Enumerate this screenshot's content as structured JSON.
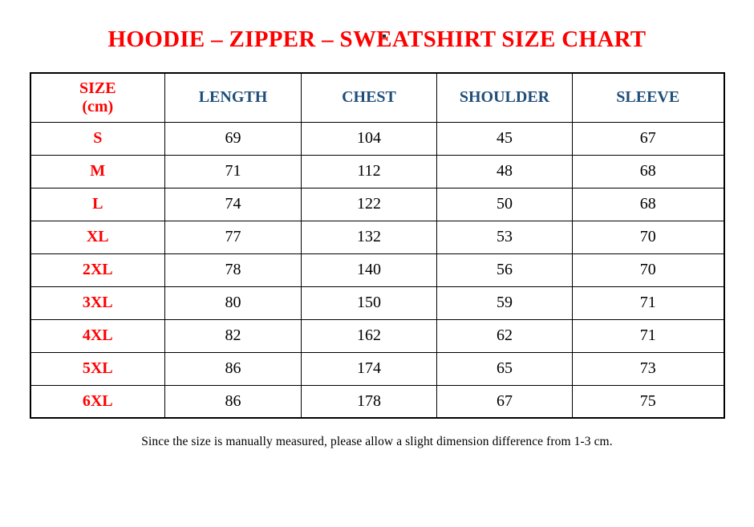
{
  "page": {
    "title": "HOODIE – ZIPPER – SWEATSHIRT SIZE CHART",
    "footnote": "Since the size is manually measured, please allow a slight dimension difference from 1-3 cm.",
    "stray_mark": "."
  },
  "colors": {
    "title_red": "#ff0000",
    "size_label_red": "#ff0000",
    "header_blue": "#1f4e79",
    "value_black": "#000000",
    "grid_border": "#000000",
    "background": "#ffffff"
  },
  "table": {
    "size_header_line1": "SIZE",
    "size_header_line2": "(cm)",
    "measure_headers": [
      "LENGTH",
      "CHEST",
      "SHOULDER",
      "SLEEVE"
    ]
  },
  "chart_data": {
    "type": "table",
    "title": "HOODIE – ZIPPER – SWEATSHIRT SIZE CHART",
    "unit": "cm",
    "columns": [
      "SIZE (cm)",
      "LENGTH",
      "CHEST",
      "SHOULDER",
      "SLEEVE"
    ],
    "rows": [
      [
        "S",
        69,
        104,
        45,
        67
      ],
      [
        "M",
        71,
        112,
        48,
        68
      ],
      [
        "L",
        74,
        122,
        50,
        68
      ],
      [
        "XL",
        77,
        132,
        53,
        70
      ],
      [
        "2XL",
        78,
        140,
        56,
        70
      ],
      [
        "3XL",
        80,
        150,
        59,
        71
      ],
      [
        "4XL",
        82,
        162,
        62,
        71
      ],
      [
        "5XL",
        86,
        174,
        65,
        73
      ],
      [
        "6XL",
        86,
        178,
        67,
        75
      ]
    ],
    "footnote": "Since the size is manually measured, please allow a slight dimension difference from 1-3 cm."
  }
}
